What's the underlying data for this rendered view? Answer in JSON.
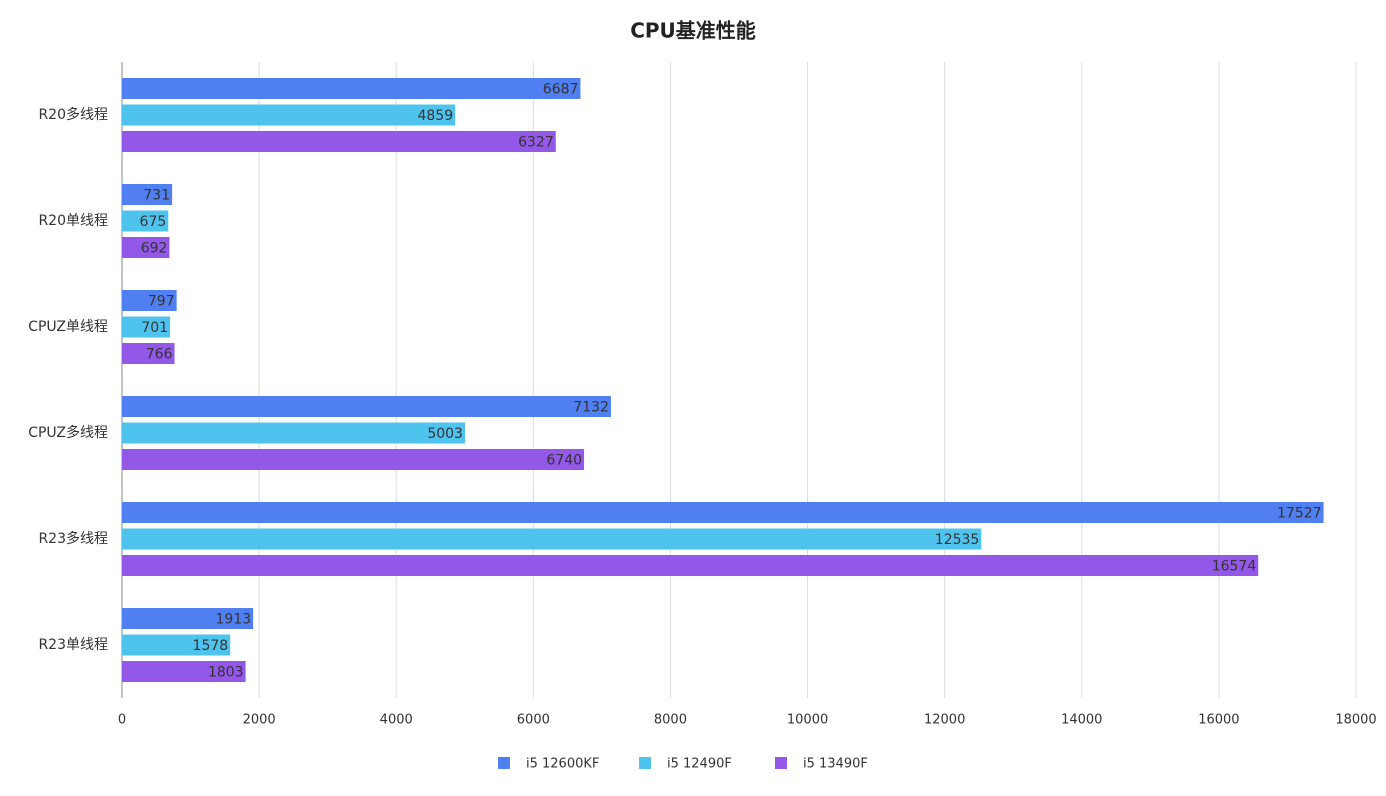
{
  "chart_data": {
    "type": "hbar",
    "title": "CPU基准性能",
    "categories": [
      "R20多线程",
      "R20单线程",
      "CPUZ单线程",
      "CPUZ多线程",
      "R23多线程",
      "R23单线程"
    ],
    "series": [
      {
        "name": "i5 12600KF",
        "color": "#4f7ff0",
        "values": [
          6687,
          731,
          797,
          7132,
          17527,
          1913
        ]
      },
      {
        "name": "i5 12490F",
        "color": "#4ec3ee",
        "values": [
          4859,
          675,
          701,
          5003,
          12535,
          1578
        ]
      },
      {
        "name": "i5 13490F",
        "color": "#9458e8",
        "values": [
          6327,
          692,
          766,
          6740,
          16574,
          1803
        ]
      }
    ],
    "xlim": [
      0,
      18000
    ],
    "xticks": [
      0,
      2000,
      4000,
      6000,
      8000,
      10000,
      12000,
      14000,
      16000,
      18000
    ],
    "grid": true,
    "legend": "bottom"
  }
}
